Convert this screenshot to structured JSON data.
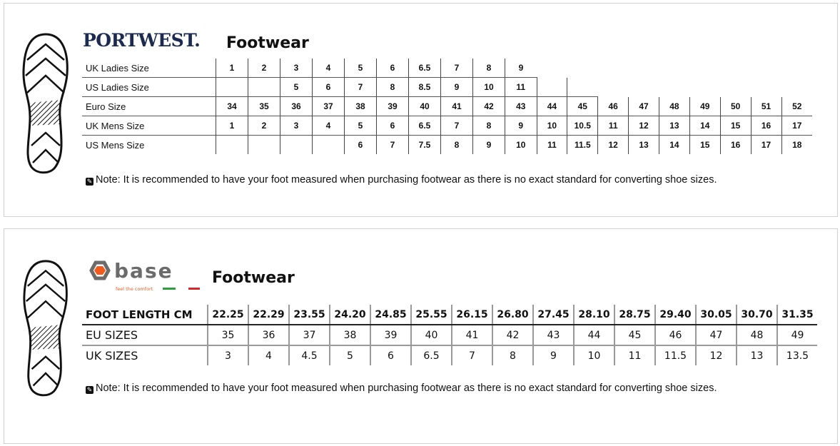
{
  "portwest": {
    "brand": "PORTWEST.",
    "title": "Footwear",
    "rows": [
      {
        "label": "UK Ladies Size",
        "cells": [
          "1",
          "2",
          "3",
          "4",
          "5",
          "6",
          "6.5",
          "7",
          "8",
          "9"
        ]
      },
      {
        "label": "US Ladies Size",
        "cells": [
          "",
          "",
          "5",
          "6",
          "7",
          "8",
          "8.5",
          "9",
          "10",
          "11",
          "",
          ""
        ]
      },
      {
        "label": "Euro Size",
        "cells": [
          "34",
          "35",
          "36",
          "37",
          "38",
          "39",
          "40",
          "41",
          "42",
          "43",
          "44",
          "45",
          "46",
          "47",
          "48",
          "49",
          "50",
          "51",
          "52"
        ]
      },
      {
        "label": "UK Mens Size",
        "cells": [
          "1",
          "2",
          "3",
          "4",
          "5",
          "6",
          "6.5",
          "7",
          "8",
          "9",
          "10",
          "10.5",
          "11",
          "12",
          "13",
          "14",
          "15",
          "16",
          "17"
        ]
      },
      {
        "label": "US Mens Size",
        "cells": [
          "",
          "",
          "",
          "",
          "6",
          "7",
          "7.5",
          "8",
          "9",
          "10",
          "11",
          "11.5",
          "12",
          "13",
          "14",
          "15",
          "16",
          "17",
          "18"
        ]
      }
    ],
    "note": "Note: It is recommended to have your foot measured when purchasing footwear as there is no exact standard for converting shoe sizes."
  },
  "base": {
    "brand": "base",
    "tagline": "feel the comfort",
    "colors": {
      "orange": "#f05a1a",
      "grey": "#6b6b6b",
      "green": "#2e9e3e",
      "red": "#d8262e"
    },
    "title": "Footwear",
    "rows": [
      {
        "label": "FOOT LENGTH CM",
        "cells": [
          "22.25",
          "22.29",
          "23.55",
          "24.20",
          "24.85",
          "25.55",
          "26.15",
          "26.80",
          "27.45",
          "28.10",
          "28.75",
          "29.40",
          "30.05",
          "30.70",
          "31.35"
        ]
      },
      {
        "label": "EU SIZES",
        "cells": [
          "35",
          "36",
          "37",
          "38",
          "39",
          "40",
          "41",
          "42",
          "43",
          "44",
          "45",
          "46",
          "47",
          "48",
          "49"
        ]
      },
      {
        "label": "UK SIZES",
        "cells": [
          "3",
          "4",
          "4.5",
          "5",
          "6",
          "6.5",
          "7",
          "8",
          "9",
          "10",
          "11",
          "11.5",
          "12",
          "13",
          "13.5"
        ]
      }
    ],
    "note": "Note: It is recommended to have your foot measured when purchasing footwear as there is no exact standard for converting shoe sizes."
  }
}
